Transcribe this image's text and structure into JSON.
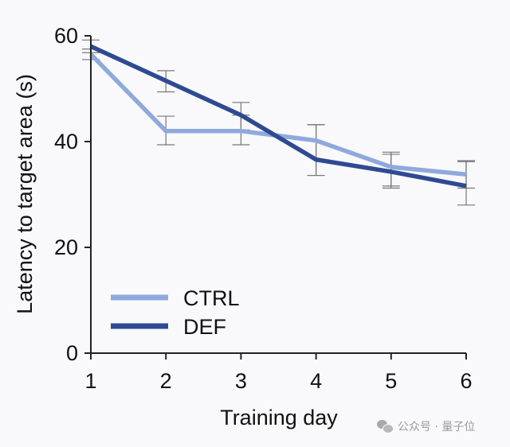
{
  "chart_data": {
    "type": "line",
    "title": "",
    "xlabel": "Training day",
    "ylabel": "Latency to target area (s)",
    "x": [
      1,
      2,
      3,
      4,
      5,
      6
    ],
    "x_ticks": [
      "1",
      "2",
      "3",
      "4",
      "5",
      "6"
    ],
    "xlim": [
      1,
      6
    ],
    "y_ticks": [
      "0",
      "20",
      "40",
      "60"
    ],
    "ylim": [
      0,
      60
    ],
    "grid": false,
    "legend_position": "lower-left",
    "series": [
      {
        "name": "CTRL",
        "color": "#8fa9dc",
        "values": [
          56.5,
          42.0,
          42.0,
          40.2,
          35.2,
          33.8
        ],
        "error_upper": [
          57.5,
          44.8,
          45.0,
          43.2,
          37.6,
          36.2
        ],
        "error_lower": [
          55.5,
          39.4,
          39.4,
          33.6,
          31.2,
          31.2
        ]
      },
      {
        "name": "DEF",
        "color": "#2e4a93",
        "values": [
          58.0,
          51.5,
          45.0,
          36.6,
          34.3,
          31.6
        ],
        "error_upper": [
          59.2,
          53.4,
          47.4,
          43.2,
          38.0,
          36.4
        ],
        "error_lower": [
          56.8,
          49.4,
          42.2,
          33.6,
          31.6,
          28.0
        ]
      }
    ]
  },
  "watermark": {
    "icon": "wechat-icon",
    "text": "公众号 · 量子位"
  }
}
